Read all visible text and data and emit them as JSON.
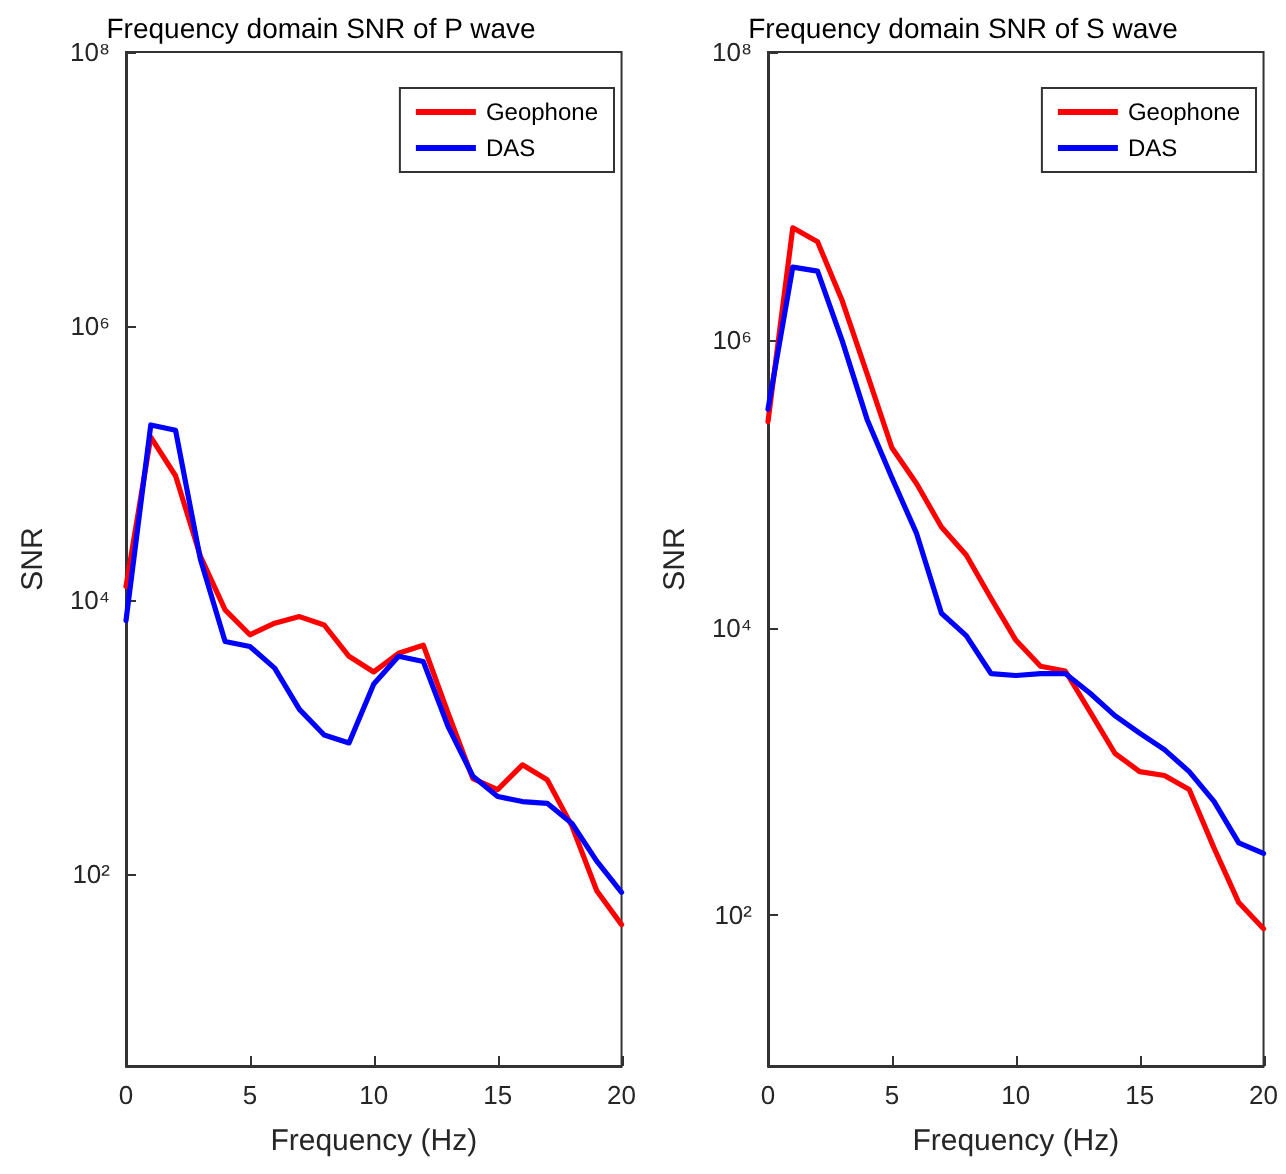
{
  "chart_data": [
    {
      "type": "line",
      "title": "Frequency domain SNR of P wave",
      "xlabel": "Frequency (Hz)",
      "ylabel": "SNR",
      "log": "y",
      "grid": false,
      "legend": "top right",
      "marker": "none",
      "line_style": "solid",
      "x": [
        0,
        1,
        2,
        3,
        4,
        5,
        6,
        7,
        8,
        9,
        10,
        11,
        12,
        13,
        14,
        15,
        16,
        17,
        18,
        19,
        20
      ],
      "xlim": [
        0,
        20
      ],
      "xticks": [
        0,
        5,
        10,
        15,
        20
      ],
      "ylim": [
        4,
        100000000
      ],
      "yticks": [
        {
          "value": 100,
          "label": "10²"
        },
        {
          "value": 10000,
          "label": "10⁴"
        },
        {
          "value": 1000000,
          "label": "10⁶"
        },
        {
          "value": 100000000,
          "label": "10⁸"
        }
      ],
      "series": [
        {
          "name": "Geophone",
          "color": "#ff0000",
          "values": [
            12600,
            155000,
            81000,
            21000,
            8500,
            5600,
            6800,
            7600,
            6600,
            3900,
            3000,
            4100,
            4700,
            1500,
            500,
            415,
            630,
            490,
            225,
            76,
            43
          ]
        },
        {
          "name": "DAS",
          "color": "#0000ff",
          "values": [
            7100,
            190000,
            174000,
            20000,
            5000,
            4600,
            3200,
            1600,
            1040,
            910,
            2450,
            3900,
            3570,
            1200,
            520,
            370,
            340,
            330,
            235,
            125,
            74
          ]
        }
      ]
    },
    {
      "type": "line",
      "title": "Frequency domain SNR of S wave",
      "xlabel": "Frequency (Hz)",
      "ylabel": "SNR",
      "log": "y",
      "grid": false,
      "legend": "top right",
      "marker": "none",
      "line_style": "solid",
      "x": [
        0,
        1,
        2,
        3,
        4,
        5,
        6,
        7,
        8,
        9,
        10,
        11,
        12,
        13,
        14,
        15,
        16,
        17,
        18,
        19,
        20
      ],
      "xlim": [
        0,
        20
      ],
      "xticks": [
        0,
        5,
        10,
        15,
        20
      ],
      "ylim": [
        9,
        100000000
      ],
      "yticks": [
        {
          "value": 100,
          "label": "10²"
        },
        {
          "value": 10000,
          "label": "10⁴"
        },
        {
          "value": 1000000,
          "label": "10⁶"
        },
        {
          "value": 100000000,
          "label": "10⁸"
        }
      ],
      "series": [
        {
          "name": "Geophone",
          "color": "#ff0000",
          "values": [
            270000,
            6000000,
            4800000,
            1860000,
            580000,
            178000,
            100000,
            50000,
            32000,
            16000,
            8200,
            5400,
            5000,
            2600,
            1340,
            1000,
            940,
            750,
            295,
            123,
            81
          ]
        },
        {
          "name": "DAS",
          "color": "#0000ff",
          "values": [
            330000,
            3200000,
            3000000,
            980000,
            280000,
            110000,
            45000,
            12600,
            8800,
            4800,
            4650,
            4800,
            4800,
            3500,
            2450,
            1850,
            1420,
            1000,
            620,
            320,
            270
          ]
        }
      ]
    }
  ]
}
